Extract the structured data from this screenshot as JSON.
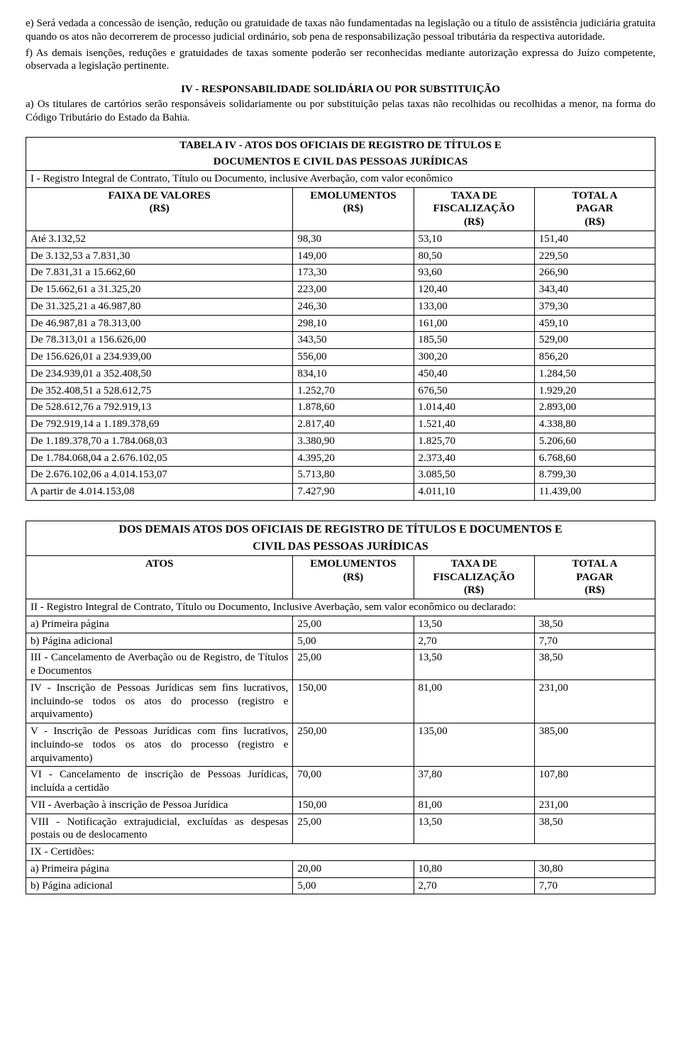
{
  "para_e": "e) Será vedada a concessão de isenção, redução ou gratuidade de taxas não fundamentadas na legislação ou a título de assistência judiciária gratuita quando os atos não decorrerem de processo judicial ordinário, sob pena de responsabilização pessoal tributária da respectiva autoridade.",
  "para_f": "f) As demais isenções, reduções e gratuidades de taxas somente poderão ser reconhecidas mediante autorização expressa do Juízo competente, observada a legislação pertinente.",
  "sec_iv_title": "IV - RESPONSABILIDADE SOLIDÁRIA OU POR SUBSTITUIÇÃO",
  "sec_iv_body": "a) Os titulares de cartórios serão responsáveis solidariamente ou por substituição pelas taxas não recolhidas ou recolhidas a menor, na forma do Código Tributário do Estado da Bahia.",
  "table1": {
    "title_l1": "TABELA IV - ATOS DOS OFICIAIS DE REGISTRO DE TÍTULOS E",
    "title_l2": "DOCUMENTOS E CIVIL DAS PESSOAS JURÍDICAS",
    "subhead": "I - Registro Integral de Contrato, Título ou Documento, inclusive Averbação, com valor econômico",
    "col1_l1": "FAIXA DE VALORES",
    "col1_l2": "(R$)",
    "col2_l1": "EMOLUMENTOS",
    "col2_l2": "(R$)",
    "col3_l1": "TAXA DE",
    "col3_l2": "FISCALIZAÇÃO",
    "col3_l3": "(R$)",
    "col4_l1": "TOTAL A",
    "col4_l2": "PAGAR",
    "col4_l3": "(R$)",
    "rows": [
      [
        "Até 3.132,52",
        "98,30",
        "53,10",
        "151,40"
      ],
      [
        "De 3.132,53 a 7.831,30",
        "149,00",
        "80,50",
        "229,50"
      ],
      [
        "De 7.831,31 a 15.662,60",
        "173,30",
        "93,60",
        "266,90"
      ],
      [
        "De 15.662,61 a 31.325,20",
        "223,00",
        "120,40",
        "343,40"
      ],
      [
        "De 31.325,21 a 46.987,80",
        "246,30",
        "133,00",
        "379,30"
      ],
      [
        "De 46.987,81 a 78.313,00",
        "298,10",
        "161,00",
        "459,10"
      ],
      [
        "De 78.313,01 a 156.626,00",
        "343,50",
        "185,50",
        "529,00"
      ],
      [
        "De 156.626,01 a 234.939,00",
        "556,00",
        "300,20",
        "856,20"
      ],
      [
        "De 234.939,01 a 352.408,50",
        "834,10",
        "450,40",
        "1.284,50"
      ],
      [
        "De 352.408,51 a 528.612,75",
        "1.252,70",
        "676,50",
        "1.929,20"
      ],
      [
        "De 528.612,76 a 792.919,13",
        "1.878,60",
        "1.014,40",
        "2.893,00"
      ],
      [
        "De 792.919,14 a 1.189.378,69",
        "2.817,40",
        "1.521,40",
        "4.338,80"
      ],
      [
        "De 1.189.378,70 a 1.784.068,03",
        "3.380,90",
        "1.825,70",
        "5.206,60"
      ],
      [
        "De 1.784.068,04 a 2.676.102,05",
        "4.395,20",
        "2.373,40",
        "6.768,60"
      ],
      [
        "De 2.676.102,06 a 4.014.153,07",
        "5.713,80",
        "3.085,50",
        "8.799,30"
      ],
      [
        "A partir de 4.014.153,08",
        "7.427,90",
        "4.011,10",
        "11.439,00"
      ]
    ]
  },
  "table2": {
    "title_l1": "DOS DEMAIS ATOS DOS OFICIAIS DE REGISTRO DE TÍTULOS E DOCUMENTOS E",
    "title_l2": "CIVIL DAS PESSOAS JURÍDICAS",
    "col1": "ATOS",
    "col2_l1": "EMOLUMENTOS",
    "col2_l2": "(R$)",
    "col3_l1": "TAXA DE",
    "col3_l2": "FISCALIZAÇÃO",
    "col3_l3": "(R$)",
    "col4_l1": "TOTAL A",
    "col4_l2": "PAGAR",
    "col4_l3": "(R$)",
    "subhead2": "II - Registro Integral de Contrato, Título ou Documento, Inclusive Averbação, sem valor econômico ou declarado:",
    "rows_a": [
      [
        "a) Primeira página",
        "25,00",
        "13,50",
        "38,50"
      ],
      [
        "b) Página adicional",
        "5,00",
        "2,70",
        "7,70"
      ]
    ],
    "row_iii": [
      "III - Cancelamento de Averbação ou de Registro, de Títulos e Documentos",
      "25,00",
      "13,50",
      "38,50"
    ],
    "row_iv": [
      "IV - Inscrição de Pessoas Jurídicas sem fins lucrativos, incluindo-se todos os atos do processo (registro e arquivamento)",
      "150,00",
      "81,00",
      "231,00"
    ],
    "row_v": [
      "V - Inscrição de Pessoas Jurídicas com fins lucrativos, incluindo-se todos os atos do processo (registro e arquivamento)",
      "250,00",
      "135,00",
      "385,00"
    ],
    "row_vi": [
      "VI - Cancelamento de inscrição de Pessoas Jurídicas, incluída a certidão",
      "70,00",
      "37,80",
      "107,80"
    ],
    "row_vii": [
      "VII - Averbação à inscrição  de Pessoa Jurídica",
      "150,00",
      "81,00",
      "231,00"
    ],
    "row_viii": [
      "VIII - Notificação extrajudicial, excluídas as despesas postais ou de deslocamento",
      "25,00",
      "13,50",
      "38,50"
    ],
    "row_ix_head": "IX - Certidões:",
    "rows_ix": [
      [
        "a) Primeira página",
        "20,00",
        "10,80",
        "30,80"
      ],
      [
        "b) Página adicional",
        "5,00",
        "2,70",
        "7,70"
      ]
    ]
  }
}
